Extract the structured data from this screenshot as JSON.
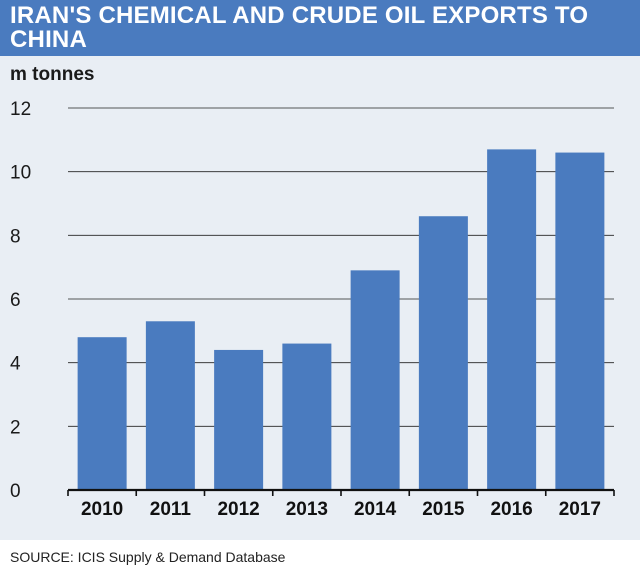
{
  "title": "IRAN'S CHEMICAL AND CRUDE OIL EXPORTS TO CHINA",
  "source": "SOURCE: ICIS Supply & Demand Database",
  "colors": {
    "header": "#4a7bbf",
    "bar": "#4a7bbf",
    "panel": "#e9eef4",
    "grid": "#222222"
  },
  "chart_data": {
    "type": "bar",
    "title": "IRAN'S CHEMICAL AND CRUDE OIL EXPORTS TO CHINA",
    "ylabel": "m tonnes",
    "xlabel": "",
    "categories": [
      "2010",
      "2011",
      "2012",
      "2013",
      "2014",
      "2015",
      "2016",
      "2017"
    ],
    "values": [
      4.8,
      5.3,
      4.4,
      4.6,
      6.9,
      8.6,
      10.7,
      10.6
    ],
    "ylim": [
      0,
      12
    ],
    "yticks": [
      0,
      2,
      4,
      6,
      8,
      10,
      12
    ],
    "grid": true,
    "legend": "none"
  }
}
